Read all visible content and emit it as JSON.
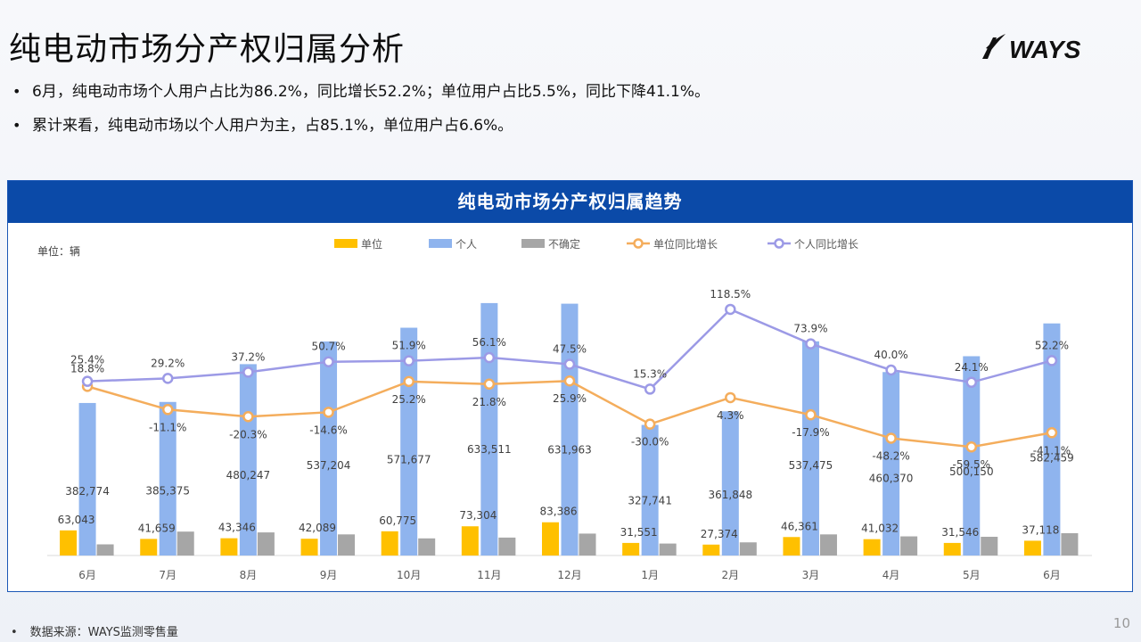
{
  "slide": {
    "title": "纯电动市场分产权归属分析",
    "bullets": [
      "6月，纯电动市场个人用户占比为86.2%，同比增长52.2%；单位用户占比5.5%，同比下降41.1%。",
      "累计来看，纯电动市场以个人用户为主，占85.1%，单位用户占6.6%。"
    ],
    "logo_text": "WAYS",
    "footnote": "数据来源：WAYS监测零售量",
    "page_number": "10"
  },
  "chart_panel": {
    "title": "纯电动市场分产权归属趋势",
    "unit_label": "单位：辆"
  },
  "colors": {
    "unit_bar": "#ffc000",
    "personal_bar": "#8fb4ee",
    "uncertain_bar": "#a6a6a6",
    "unit_yoy_line": "#f4ad5c",
    "personal_yoy_line": "#9c9ae6",
    "header_bg": "#0b4aa8"
  },
  "chart_data": {
    "type": "bar",
    "categories": [
      "6月",
      "7月",
      "8月",
      "9月",
      "10月",
      "11月",
      "12月",
      "1月",
      "2月",
      "3月",
      "4月",
      "5月",
      "6月"
    ],
    "series": [
      {
        "name": "单位",
        "type": "bar",
        "values": [
          63043,
          41659,
          43346,
          42089,
          60775,
          73304,
          83386,
          31551,
          27374,
          46361,
          41032,
          31546,
          37118
        ],
        "labels": [
          "63,043",
          "41,659",
          "43,346",
          "42,089",
          "60,775",
          "73,304",
          "83,386",
          "31,551",
          "27,374",
          "46,361",
          "41,032",
          "31,546",
          "37,118"
        ]
      },
      {
        "name": "个人",
        "type": "bar",
        "values": [
          382774,
          385375,
          480247,
          537204,
          571677,
          633511,
          631963,
          327741,
          361848,
          537475,
          460370,
          500150,
          582459
        ],
        "labels": [
          "382,774",
          "385,375",
          "480,247",
          "537,204",
          "571,677",
          "633,511",
          "631,963",
          "327,741",
          "361,848",
          "537,475",
          "460,370",
          "500,150",
          "582,459"
        ]
      },
      {
        "name": "不确定",
        "type": "bar",
        "values": [
          28000,
          60000,
          58000,
          53000,
          43000,
          45000,
          55000,
          30000,
          33000,
          53000,
          48000,
          47000,
          56000
        ],
        "labels": []
      },
      {
        "name": "单位同比增长",
        "type": "line",
        "values": [
          18.8,
          -11.1,
          -20.3,
          -14.6,
          25.2,
          21.8,
          25.9,
          -30.0,
          4.3,
          -17.9,
          -48.2,
          -59.5,
          -41.1
        ],
        "labels": [
          "18.8%",
          "-11.1%",
          "-20.3%",
          "-14.6%",
          "25.2%",
          "21.8%",
          "25.9%",
          "-30.0%",
          "4.3%",
          "-17.9%",
          "-48.2%",
          "-59.5%",
          "-41.1%"
        ]
      },
      {
        "name": "个人同比增长",
        "type": "line",
        "values": [
          25.4,
          29.2,
          37.2,
          50.7,
          51.9,
          56.1,
          47.5,
          15.3,
          118.5,
          73.9,
          40.0,
          24.1,
          52.2
        ],
        "labels": [
          "25.4%",
          "29.2%",
          "37.2%",
          "50.7%",
          "51.9%",
          "56.1%",
          "47.5%",
          "15.3%",
          "118.5%",
          "73.9%",
          "40.0%",
          "24.1%",
          "52.2%"
        ]
      }
    ],
    "ylim_bars": [
      0,
      640000
    ],
    "ylim_lines": [
      -200,
      130
    ],
    "grid": false,
    "legend_position": "top"
  }
}
